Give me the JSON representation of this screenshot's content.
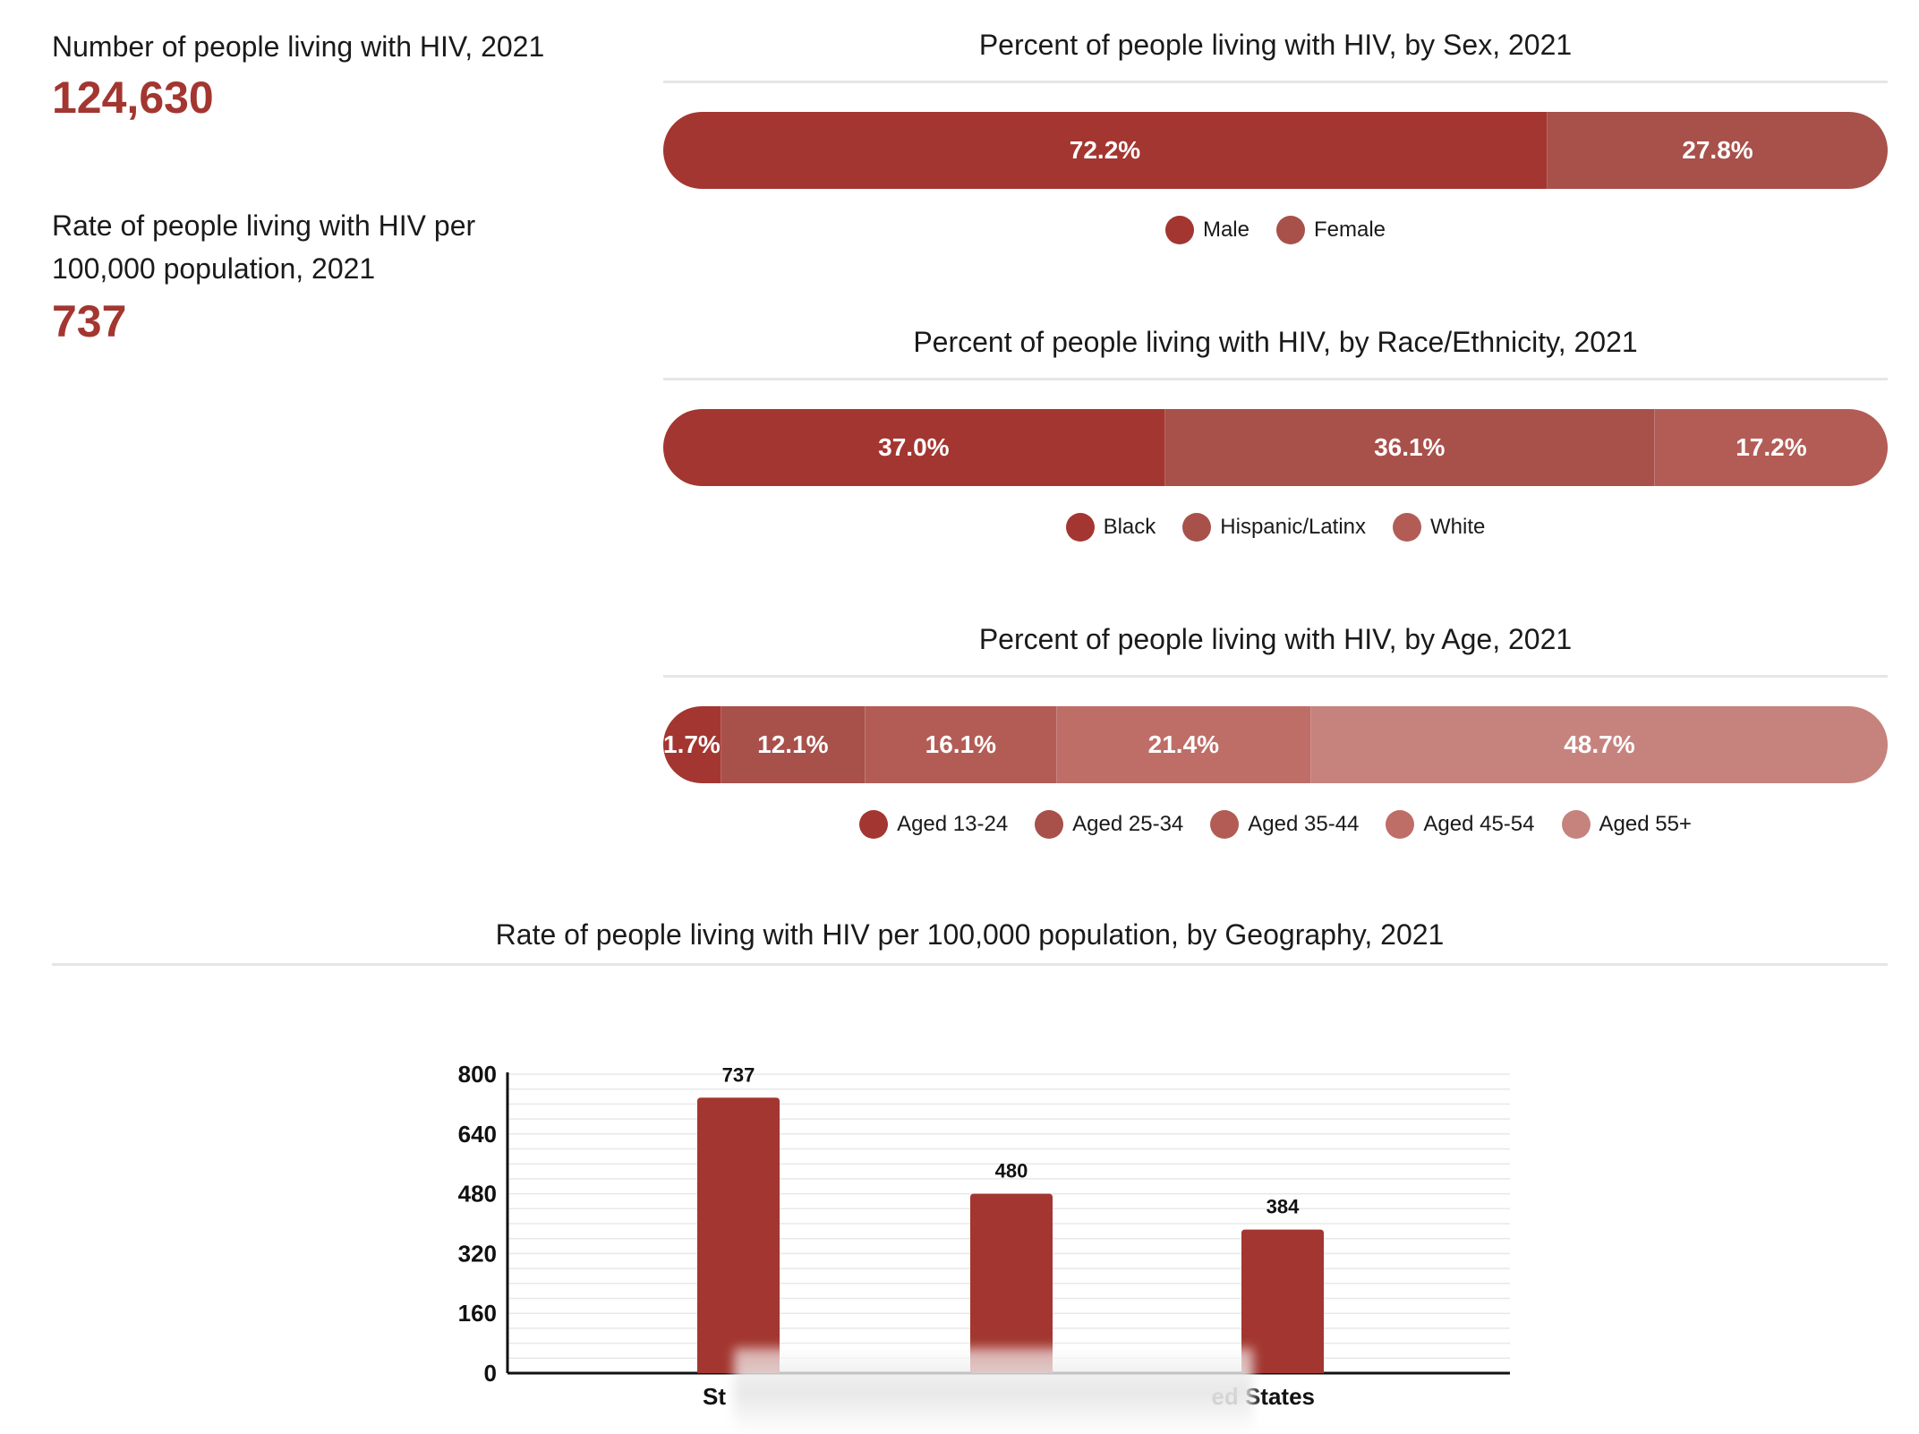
{
  "stats": {
    "count_label": "Number of people living with HIV, 2021",
    "count_value": "124,630",
    "rate_label_line1": "Rate of people living with HIV per",
    "rate_label_line2": "100,000 population, 2021",
    "rate_value": "737"
  },
  "colors": {
    "accent": "#a33630",
    "shade1": "#a33630",
    "shade2": "#a8504a",
    "shade3": "#b35c56",
    "shade4": "#bf6d67",
    "shade5": "#c6837e"
  },
  "chart_data": [
    {
      "type": "bar",
      "orientation": "horizontal-stacked",
      "title": "Percent of people living with HIV, by Sex, 2021",
      "series": [
        {
          "name": "Male",
          "value": 72.2,
          "label": "72.2%",
          "color": "#a33630"
        },
        {
          "name": "Female",
          "value": 27.8,
          "label": "27.8%",
          "color": "#a8504a"
        }
      ]
    },
    {
      "type": "bar",
      "orientation": "horizontal-stacked",
      "title": "Percent of people living with HIV, by Race/Ethnicity, 2021",
      "series": [
        {
          "name": "Black",
          "value": 37.0,
          "label": "37.0%",
          "color": "#a33630"
        },
        {
          "name": "Hispanic/Latinx",
          "value": 36.1,
          "label": "36.1%",
          "color": "#a8504a"
        },
        {
          "name": "White",
          "value": 17.2,
          "label": "17.2%",
          "color": "#b35c56"
        }
      ]
    },
    {
      "type": "bar",
      "orientation": "horizontal-stacked",
      "title": "Percent of people living with HIV, by Age, 2021",
      "series": [
        {
          "name": "Aged 13-24",
          "value": 1.7,
          "label": "1.7%",
          "color": "#a33630"
        },
        {
          "name": "Aged 25-34",
          "value": 12.1,
          "label": "12.1%",
          "color": "#a8504a"
        },
        {
          "name": "Aged 35-44",
          "value": 16.1,
          "label": "16.1%",
          "color": "#b35c56"
        },
        {
          "name": "Aged 45-54",
          "value": 21.4,
          "label": "21.4%",
          "color": "#bf6d67"
        },
        {
          "name": "Aged 55+",
          "value": 48.7,
          "label": "48.7%",
          "color": "#c6837e"
        }
      ]
    },
    {
      "type": "bar",
      "title": "Rate of people living with HIV per 100,000 population, by Geography, 2021",
      "categories": [
        "St",
        "",
        "ed States"
      ],
      "values": [
        737,
        480,
        384
      ],
      "value_labels": [
        "737",
        "480",
        "384"
      ],
      "ylim": [
        0,
        800
      ],
      "yticks": [
        0,
        160,
        320,
        480,
        640,
        800
      ],
      "grid": true,
      "color": "#a33630"
    }
  ]
}
